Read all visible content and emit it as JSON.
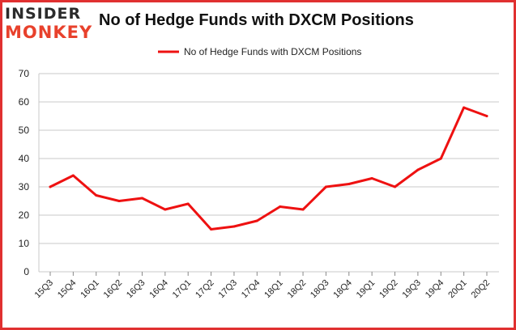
{
  "logo": {
    "top": "INSIDER",
    "bottom": "MONKEY"
  },
  "colors": {
    "line": "#ee1111",
    "frame": "#e03030",
    "grid": "#c9c9c9",
    "logo_accent": "#e8412c"
  },
  "chart_data": {
    "type": "line",
    "title": "No of Hedge Funds with DXCM Positions",
    "xlabel": "",
    "ylabel": "",
    "ylim": [
      0,
      70
    ],
    "yticks": [
      0,
      10,
      20,
      30,
      40,
      50,
      60,
      70
    ],
    "grid": true,
    "legend_position": "top-center",
    "categories": [
      "15Q3",
      "15Q4",
      "16Q1",
      "16Q2",
      "16Q3",
      "16Q4",
      "17Q1",
      "17Q2",
      "17Q3",
      "17Q4",
      "18Q1",
      "18Q2",
      "18Q3",
      "18Q4",
      "19Q1",
      "19Q2",
      "19Q3",
      "19Q4",
      "20Q1",
      "20Q2"
    ],
    "series": [
      {
        "name": "No of Hedge Funds with DXCM Positions",
        "values": [
          30,
          34,
          27,
          25,
          26,
          22,
          24,
          15,
          16,
          18,
          23,
          22,
          30,
          31,
          33,
          30,
          36,
          40,
          58,
          55
        ]
      }
    ]
  }
}
